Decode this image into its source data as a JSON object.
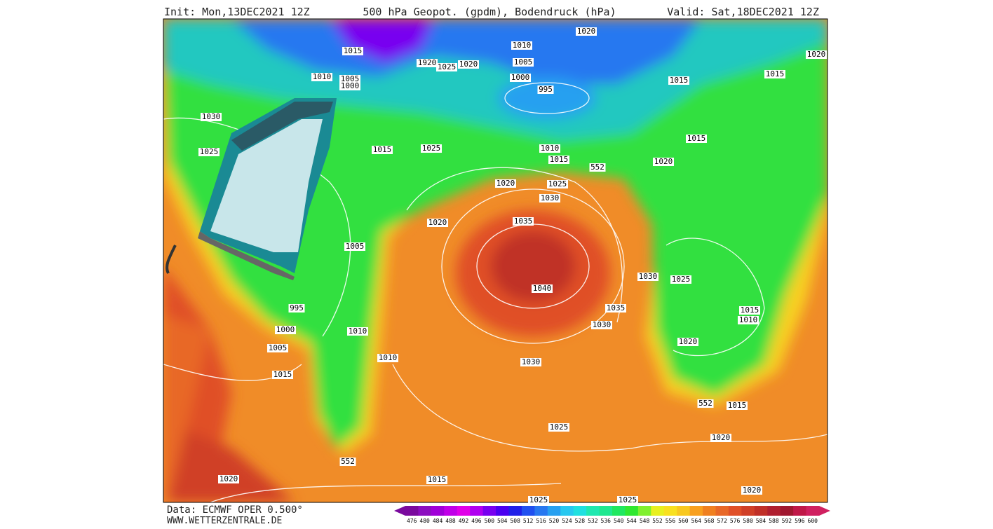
{
  "header": {
    "init": "Init: Mon,13DEC2021 12Z",
    "title": "500 hPa Geopot. (gpdm), Bodendruck (hPa)",
    "valid": "Valid: Sat,18DEC2021 12Z"
  },
  "footer": {
    "data": "Data: ECMWF OPER 0.500°",
    "site": "WWW.WETTERZENTRALE.DE"
  },
  "colorbar": {
    "values": [
      476,
      480,
      484,
      488,
      492,
      496,
      500,
      504,
      508,
      512,
      516,
      520,
      524,
      528,
      532,
      536,
      540,
      544,
      548,
      552,
      556,
      560,
      564,
      568,
      572,
      576,
      580,
      584,
      588,
      592,
      596,
      600
    ],
    "colors": [
      "#7a0a9e",
      "#8c0fc0",
      "#a000d8",
      "#c000e8",
      "#e000e8",
      "#b000f0",
      "#7800f0",
      "#4a00f0",
      "#2020e8",
      "#2050f0",
      "#2878f0",
      "#28a0f0",
      "#28c8f0",
      "#20e0e0",
      "#20e8b0",
      "#20e890",
      "#20e860",
      "#30e830",
      "#80f030",
      "#e8f020",
      "#f8e020",
      "#f8c820",
      "#f8a020",
      "#f08020",
      "#e86828",
      "#e05028",
      "#d04028",
      "#c03028",
      "#b02030",
      "#a01830",
      "#c01848",
      "#d02060"
    ]
  },
  "isobar_labels": [
    "1020",
    "1010",
    "1015",
    "1920",
    "1025",
    "1020",
    "1005",
    "1010",
    "1005",
    "1000",
    "1000",
    "995",
    "1015",
    "1015",
    "1020",
    "1030",
    "1025",
    "1015",
    "1025",
    "1010",
    "1015",
    "552",
    "1015",
    "1020",
    "1020",
    "1025",
    "1030",
    "1020",
    "1035",
    "1005",
    "1040",
    "1030",
    "1025",
    "1035",
    "1030",
    "1015",
    "1010",
    "995",
    "1000",
    "1010",
    "1005",
    "1020",
    "1010",
    "1030",
    "1015",
    "552",
    "1015",
    "1025",
    "1020",
    "552",
    "1020",
    "1015",
    "1020",
    "1025",
    "1025"
  ]
}
